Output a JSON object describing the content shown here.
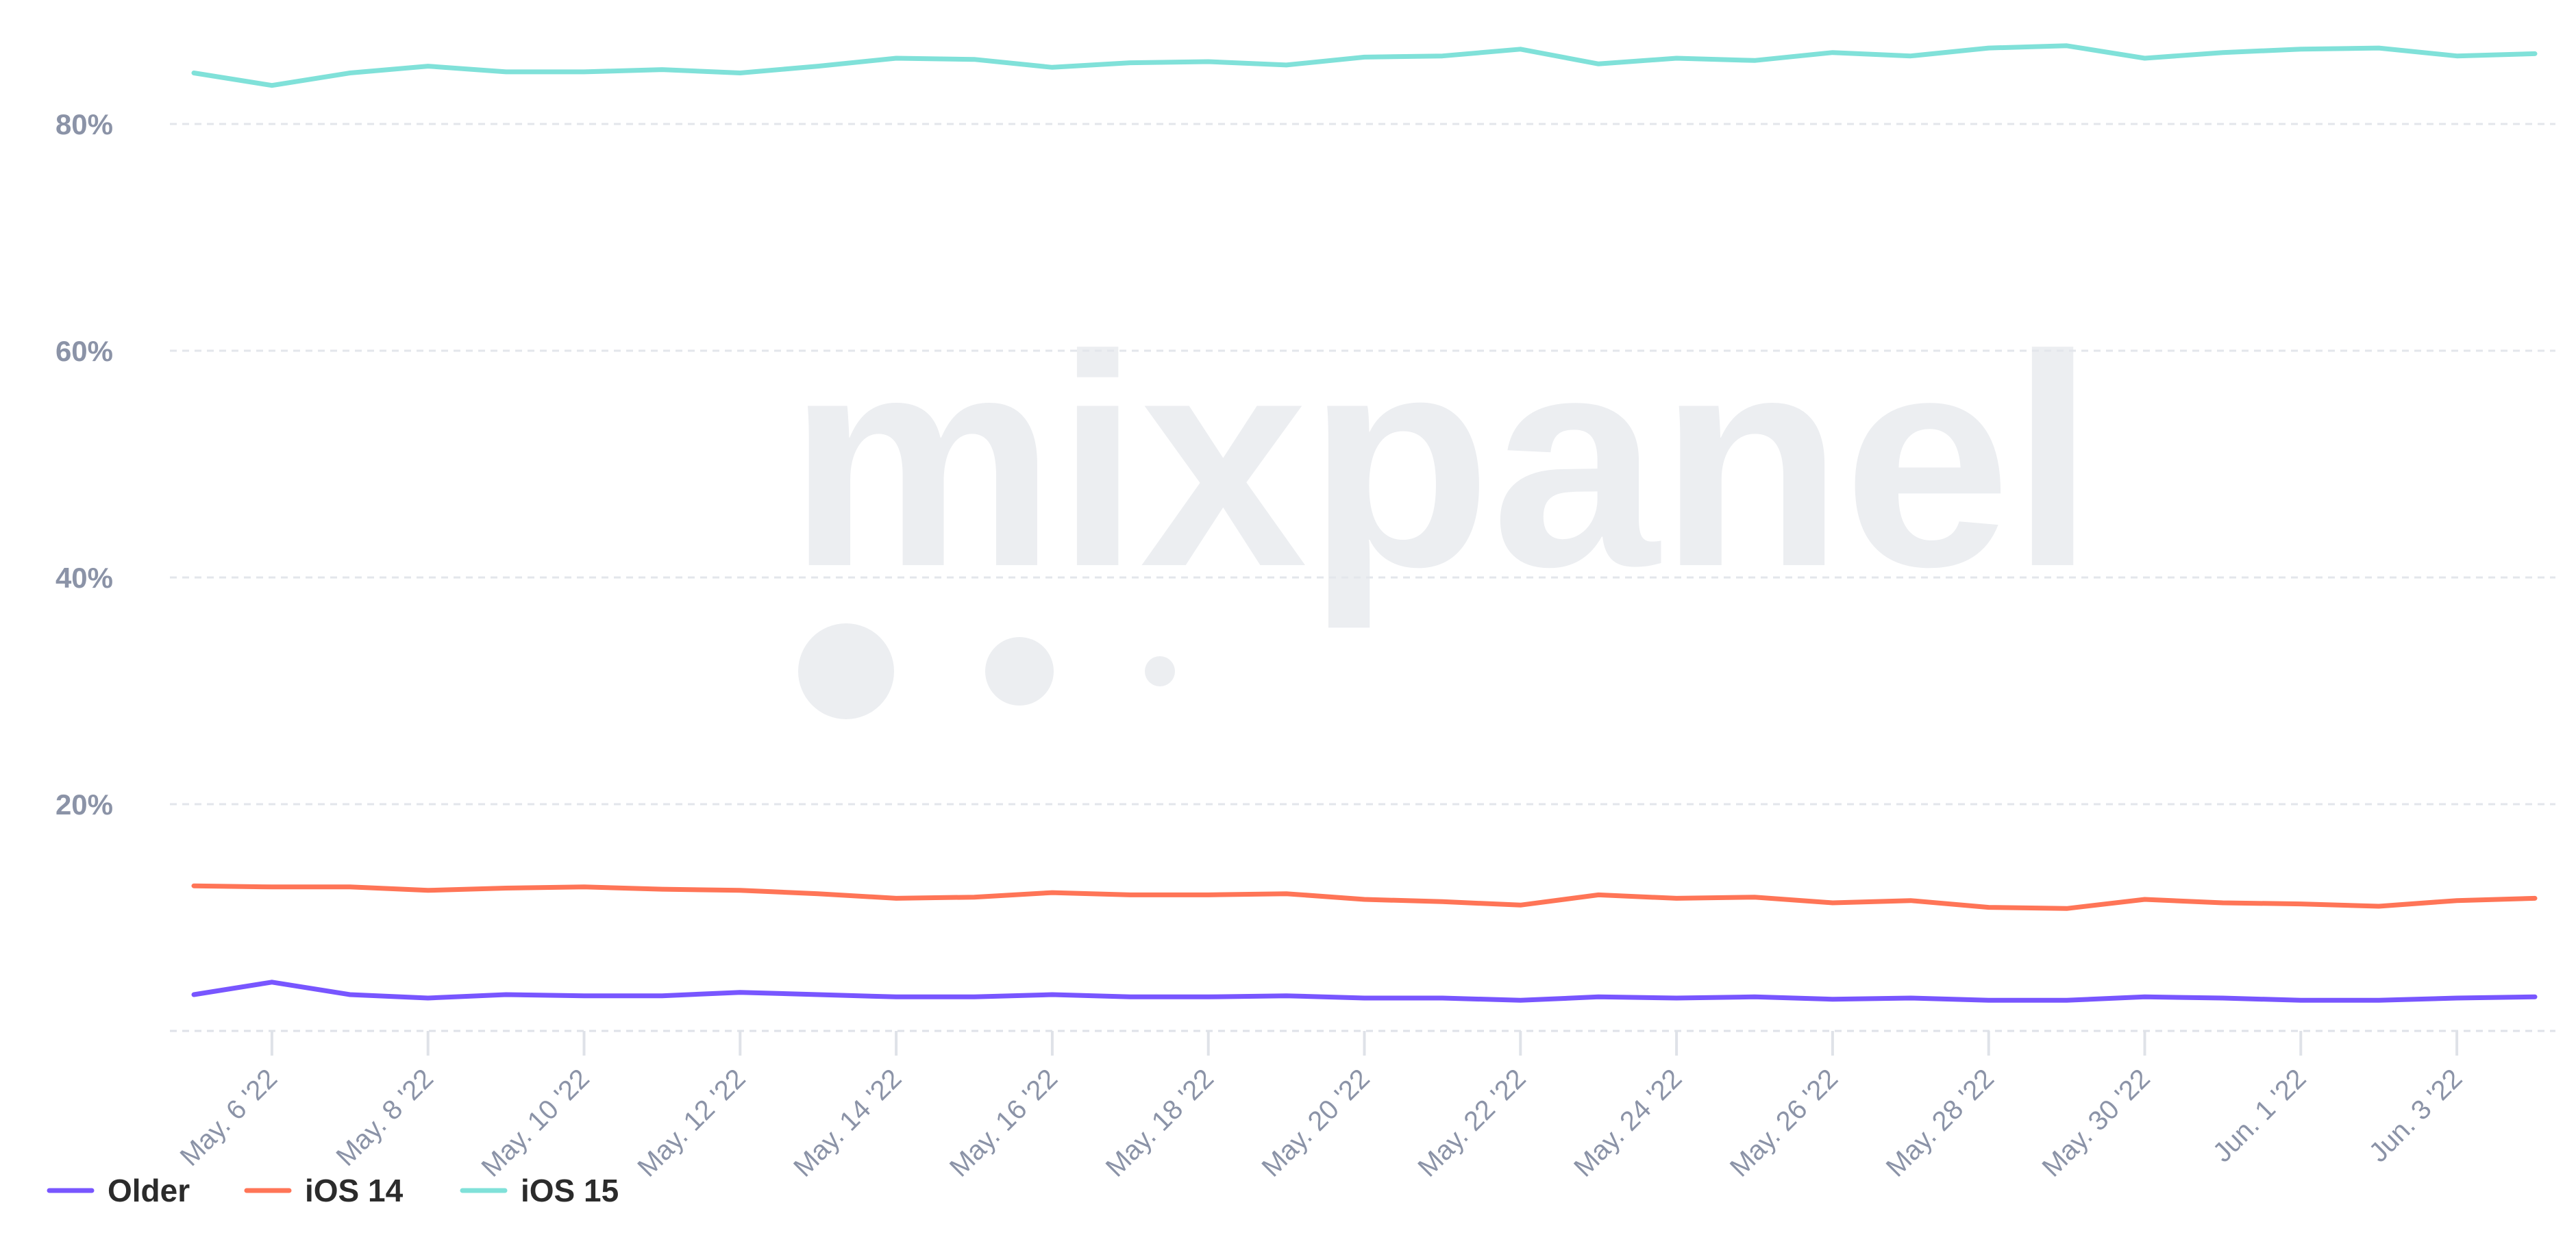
{
  "chart_data": {
    "type": "line",
    "title": "",
    "xlabel": "",
    "ylabel": "",
    "ylim": [
      0,
      90
    ],
    "grid": true,
    "legend_position": "bottom-left",
    "y_ticks": [
      {
        "value": 20,
        "label": "20%"
      },
      {
        "value": 40,
        "label": "40%"
      },
      {
        "value": 60,
        "label": "60%"
      },
      {
        "value": 80,
        "label": "80%"
      }
    ],
    "x": [
      "2022-05-05",
      "2022-05-06",
      "2022-05-07",
      "2022-05-08",
      "2022-05-09",
      "2022-05-10",
      "2022-05-11",
      "2022-05-12",
      "2022-05-13",
      "2022-05-14",
      "2022-05-15",
      "2022-05-16",
      "2022-05-17",
      "2022-05-18",
      "2022-05-19",
      "2022-05-20",
      "2022-05-21",
      "2022-05-22",
      "2022-05-23",
      "2022-05-24",
      "2022-05-25",
      "2022-05-26",
      "2022-05-27",
      "2022-05-28",
      "2022-05-29",
      "2022-05-30",
      "2022-05-31",
      "2022-06-01",
      "2022-06-02",
      "2022-06-03",
      "2022-06-04"
    ],
    "x_ticks": [
      {
        "date": "2022-05-06",
        "label": "May. 6 '22"
      },
      {
        "date": "2022-05-08",
        "label": "May. 8 '22"
      },
      {
        "date": "2022-05-10",
        "label": "May. 10 '22"
      },
      {
        "date": "2022-05-12",
        "label": "May. 12 '22"
      },
      {
        "date": "2022-05-14",
        "label": "May. 14 '22"
      },
      {
        "date": "2022-05-16",
        "label": "May. 16 '22"
      },
      {
        "date": "2022-05-18",
        "label": "May. 18 '22"
      },
      {
        "date": "2022-05-20",
        "label": "May. 20 '22"
      },
      {
        "date": "2022-05-22",
        "label": "May. 22 '22"
      },
      {
        "date": "2022-05-24",
        "label": "May. 24 '22"
      },
      {
        "date": "2022-05-26",
        "label": "May. 26 '22"
      },
      {
        "date": "2022-05-28",
        "label": "May. 28 '22"
      },
      {
        "date": "2022-05-30",
        "label": "May. 30 '22"
      },
      {
        "date": "2022-06-01",
        "label": "Jun. 1 '22"
      },
      {
        "date": "2022-06-03",
        "label": "Jun. 3 '22"
      }
    ],
    "series": [
      {
        "name": "Older",
        "color": "#7856ff",
        "values": [
          3.2,
          4.3,
          3.2,
          2.9,
          3.2,
          3.1,
          3.1,
          3.4,
          3.2,
          3.0,
          3.0,
          3.2,
          3.0,
          3.0,
          3.1,
          2.9,
          2.9,
          2.7,
          3.0,
          2.9,
          3.0,
          2.8,
          2.9,
          2.7,
          2.7,
          3.0,
          2.9,
          2.7,
          2.7,
          2.9,
          3.0
        ]
      },
      {
        "name": "iOS 14",
        "color": "#ff7557",
        "values": [
          12.8,
          12.7,
          12.7,
          12.4,
          12.6,
          12.7,
          12.5,
          12.4,
          12.1,
          11.7,
          11.8,
          12.2,
          12.0,
          12.0,
          12.1,
          11.6,
          11.4,
          11.1,
          12.0,
          11.7,
          11.8,
          11.3,
          11.5,
          10.9,
          10.8,
          11.6,
          11.3,
          11.2,
          11.0,
          11.5,
          11.7
        ]
      },
      {
        "name": "iOS 15",
        "color": "#80e1d9",
        "values": [
          84.5,
          83.4,
          84.5,
          85.1,
          84.6,
          84.6,
          84.8,
          84.5,
          85.1,
          85.8,
          85.7,
          85.0,
          85.4,
          85.5,
          85.2,
          85.9,
          86.0,
          86.6,
          85.3,
          85.8,
          85.6,
          86.3,
          86.0,
          86.7,
          86.9,
          85.8,
          86.3,
          86.6,
          86.7,
          86.0,
          86.2
        ]
      }
    ]
  },
  "watermark": {
    "text": "mixpanel",
    "color": "#eceef1"
  },
  "style": {
    "grid_color": "#e3e6eb",
    "axis_color": "#dfe2e8",
    "tick_label_color": "#8b93a7",
    "legend_text_color": "#2b2b2b"
  }
}
